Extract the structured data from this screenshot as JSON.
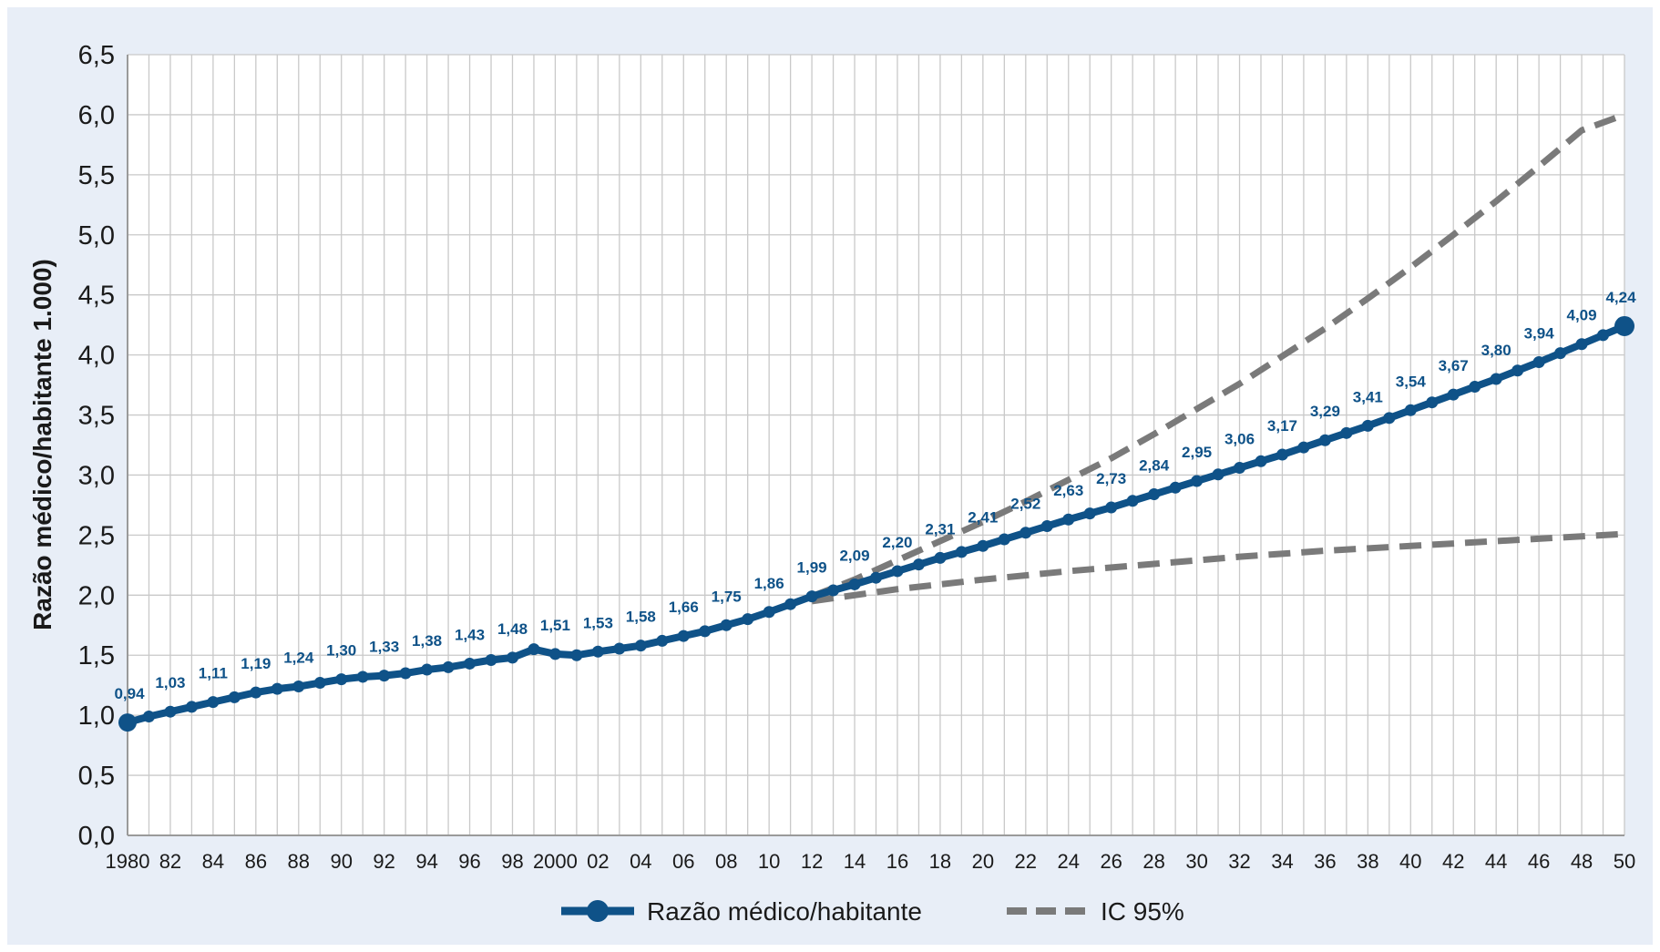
{
  "chart_data": {
    "type": "line",
    "ylabel": "Razão médico/habitante 1.000)",
    "xlim": [
      1980,
      2050
    ],
    "ylim": [
      0,
      6.5
    ],
    "y_ticks": [
      "0,0",
      "0,5",
      "1,0",
      "1,5",
      "2,0",
      "2,5",
      "3,0",
      "3,5",
      "4,0",
      "4,5",
      "5,0",
      "5,5",
      "6,0",
      "6,5"
    ],
    "y_tick_values": [
      0,
      0.5,
      1,
      1.5,
      2,
      2.5,
      3,
      3.5,
      4,
      4.5,
      5,
      5.5,
      6,
      6.5
    ],
    "x_ticks": [
      "1980",
      "82",
      "84",
      "86",
      "88",
      "90",
      "92",
      "94",
      "96",
      "98",
      "2000",
      "02",
      "04",
      "06",
      "08",
      "10",
      "12",
      "14",
      "16",
      "18",
      "20",
      "22",
      "24",
      "26",
      "28",
      "30",
      "32",
      "34",
      "36",
      "38",
      "40",
      "42",
      "44",
      "46",
      "48",
      "50"
    ],
    "grid": "vertical and horizontal, every year",
    "legend_position": "bottom-center",
    "colors": {
      "series": "#0f5288",
      "ci": "#7a7a7a",
      "background": "#e8eef7",
      "plot": "#ffffff",
      "grid": "#c9c9c9"
    },
    "series": [
      {
        "name": "Razão médico/habitante",
        "style": "solid-with-markers",
        "x": [
          1980,
          1981,
          1982,
          1983,
          1984,
          1985,
          1986,
          1987,
          1988,
          1989,
          1990,
          1991,
          1992,
          1993,
          1994,
          1995,
          1996,
          1997,
          1998,
          1999,
          2000,
          2001,
          2002,
          2003,
          2004,
          2005,
          2006,
          2007,
          2008,
          2009,
          2010,
          2011,
          2012,
          2013,
          2014,
          2015,
          2016,
          2017,
          2018,
          2019,
          2020,
          2021,
          2022,
          2023,
          2024,
          2025,
          2026,
          2027,
          2028,
          2029,
          2030,
          2031,
          2032,
          2033,
          2034,
          2035,
          2036,
          2037,
          2038,
          2039,
          2040,
          2041,
          2042,
          2043,
          2044,
          2045,
          2046,
          2047,
          2048,
          2049,
          2050
        ],
        "values": [
          0.94,
          0.99,
          1.03,
          1.07,
          1.11,
          1.15,
          1.19,
          1.22,
          1.24,
          1.27,
          1.3,
          1.32,
          1.33,
          1.35,
          1.38,
          1.4,
          1.43,
          1.46,
          1.48,
          1.55,
          1.51,
          1.5,
          1.53,
          1.555,
          1.58,
          1.62,
          1.66,
          1.7,
          1.75,
          1.8,
          1.86,
          1.925,
          1.99,
          2.04,
          2.09,
          2.145,
          2.2,
          2.255,
          2.31,
          2.36,
          2.41,
          2.465,
          2.52,
          2.575,
          2.63,
          2.68,
          2.73,
          2.785,
          2.84,
          2.895,
          2.95,
          3.005,
          3.06,
          3.115,
          3.17,
          3.23,
          3.29,
          3.35,
          3.41,
          3.475,
          3.54,
          3.605,
          3.67,
          3.735,
          3.8,
          3.87,
          3.94,
          4.015,
          4.09,
          4.165,
          4.24
        ],
        "labels": [
          {
            "x": 1980,
            "text": "0,94"
          },
          {
            "x": 1982,
            "text": "1,03"
          },
          {
            "x": 1984,
            "text": "1,11"
          },
          {
            "x": 1986,
            "text": "1,19"
          },
          {
            "x": 1988,
            "text": "1,24"
          },
          {
            "x": 1990,
            "text": "1,30"
          },
          {
            "x": 1992,
            "text": "1,33"
          },
          {
            "x": 1994,
            "text": "1,38"
          },
          {
            "x": 1996,
            "text": "1,43"
          },
          {
            "x": 1998,
            "text": "1,48"
          },
          {
            "x": 2000,
            "text": "1,51"
          },
          {
            "x": 2002,
            "text": "1,53"
          },
          {
            "x": 2004,
            "text": "1,58"
          },
          {
            "x": 2006,
            "text": "1,66"
          },
          {
            "x": 2008,
            "text": "1,75"
          },
          {
            "x": 2010,
            "text": "1,86"
          },
          {
            "x": 2012,
            "text": "1,99"
          },
          {
            "x": 2014,
            "text": "2,09"
          },
          {
            "x": 2016,
            "text": "2,20"
          },
          {
            "x": 2018,
            "text": "2,31"
          },
          {
            "x": 2020,
            "text": "2,41"
          },
          {
            "x": 2022,
            "text": "2,52"
          },
          {
            "x": 2024,
            "text": "2,63"
          },
          {
            "x": 2026,
            "text": "2,73"
          },
          {
            "x": 2028,
            "text": "2,84"
          },
          {
            "x": 2030,
            "text": "2,95"
          },
          {
            "x": 2032,
            "text": "3,06"
          },
          {
            "x": 2034,
            "text": "3,17"
          },
          {
            "x": 2036,
            "text": "3,29"
          },
          {
            "x": 2038,
            "text": "3,41"
          },
          {
            "x": 2040,
            "text": "3,54"
          },
          {
            "x": 2042,
            "text": "3,67"
          },
          {
            "x": 2044,
            "text": "3,80"
          },
          {
            "x": 2046,
            "text": "3,94"
          },
          {
            "x": 2048,
            "text": "4,09"
          },
          {
            "x": 2050,
            "text": "4,24"
          }
        ]
      },
      {
        "name": "IC 95%",
        "part": "upper",
        "style": "dashed",
        "x": [
          2012,
          2014,
          2016,
          2018,
          2020,
          2022,
          2024,
          2026,
          2028,
          2030,
          2032,
          2034,
          2036,
          2038,
          2040,
          2042,
          2044,
          2046,
          2048,
          2050
        ],
        "values": [
          1.99,
          2.13,
          2.29,
          2.45,
          2.61,
          2.78,
          2.96,
          3.14,
          3.34,
          3.55,
          3.76,
          3.99,
          4.22,
          4.47,
          4.73,
          5.0,
          5.28,
          5.57,
          5.87,
          6.0
        ]
      },
      {
        "name": "IC 95%",
        "part": "lower",
        "style": "dashed",
        "x": [
          2012,
          2016,
          2020,
          2024,
          2028,
          2032,
          2036,
          2040,
          2044,
          2048,
          2050
        ],
        "values": [
          1.95,
          2.05,
          2.13,
          2.2,
          2.26,
          2.32,
          2.37,
          2.41,
          2.45,
          2.49,
          2.51
        ]
      }
    ],
    "legend": [
      {
        "label": "Razão médico/habitante",
        "style": "solid-with-marker"
      },
      {
        "label": "IC 95%",
        "style": "dashed"
      }
    ]
  }
}
